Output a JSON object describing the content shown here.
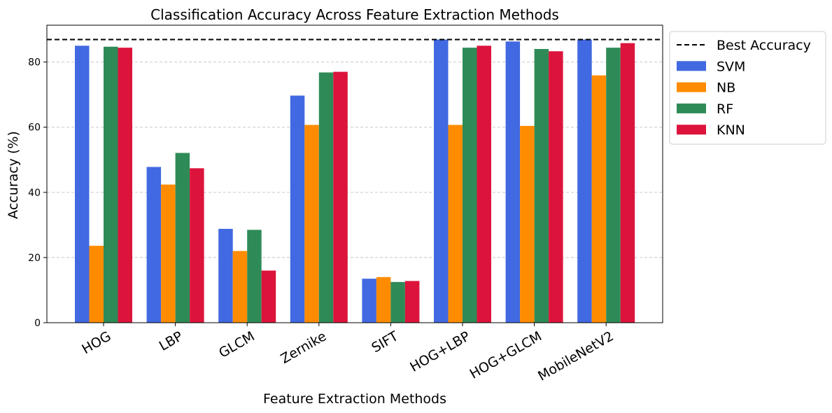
{
  "chart_data": {
    "type": "bar",
    "title": "Classification Accuracy Across Feature Extraction Methods",
    "xlabel": "Feature Extraction Methods",
    "ylabel": "Accuracy (%)",
    "categories": [
      "HOG",
      "LBP",
      "GLCM",
      "Zernike",
      "SIFT",
      "HOG+LBP",
      "HOG+GLCM",
      "MobileNetV2"
    ],
    "series": [
      {
        "name": "SVM",
        "color": "#4169E1",
        "values": [
          85.0,
          47.8,
          28.8,
          69.7,
          13.5,
          86.9,
          86.3,
          86.9
        ]
      },
      {
        "name": "NB",
        "color": "#FF8C00",
        "values": [
          23.6,
          42.4,
          22.0,
          60.7,
          14.0,
          60.7,
          60.4,
          75.9
        ]
      },
      {
        "name": "RF",
        "color": "#2E8B57",
        "values": [
          84.7,
          52.1,
          28.5,
          76.8,
          12.5,
          84.4,
          84.0,
          84.4
        ]
      },
      {
        "name": "KNN",
        "color": "#DC143C",
        "values": [
          84.4,
          47.4,
          16.0,
          77.0,
          12.8,
          85.0,
          83.3,
          85.8
        ]
      }
    ],
    "reference_line": {
      "name": "Best Accuracy",
      "value": 86.9,
      "style": "dashed",
      "color": "#000000"
    },
    "ylim": [
      0,
      91.3
    ],
    "yticks": [
      0,
      20,
      40,
      60,
      80
    ],
    "grid": "y-dashed",
    "legend": "outside-top-right",
    "xtick_rotation": -30
  }
}
